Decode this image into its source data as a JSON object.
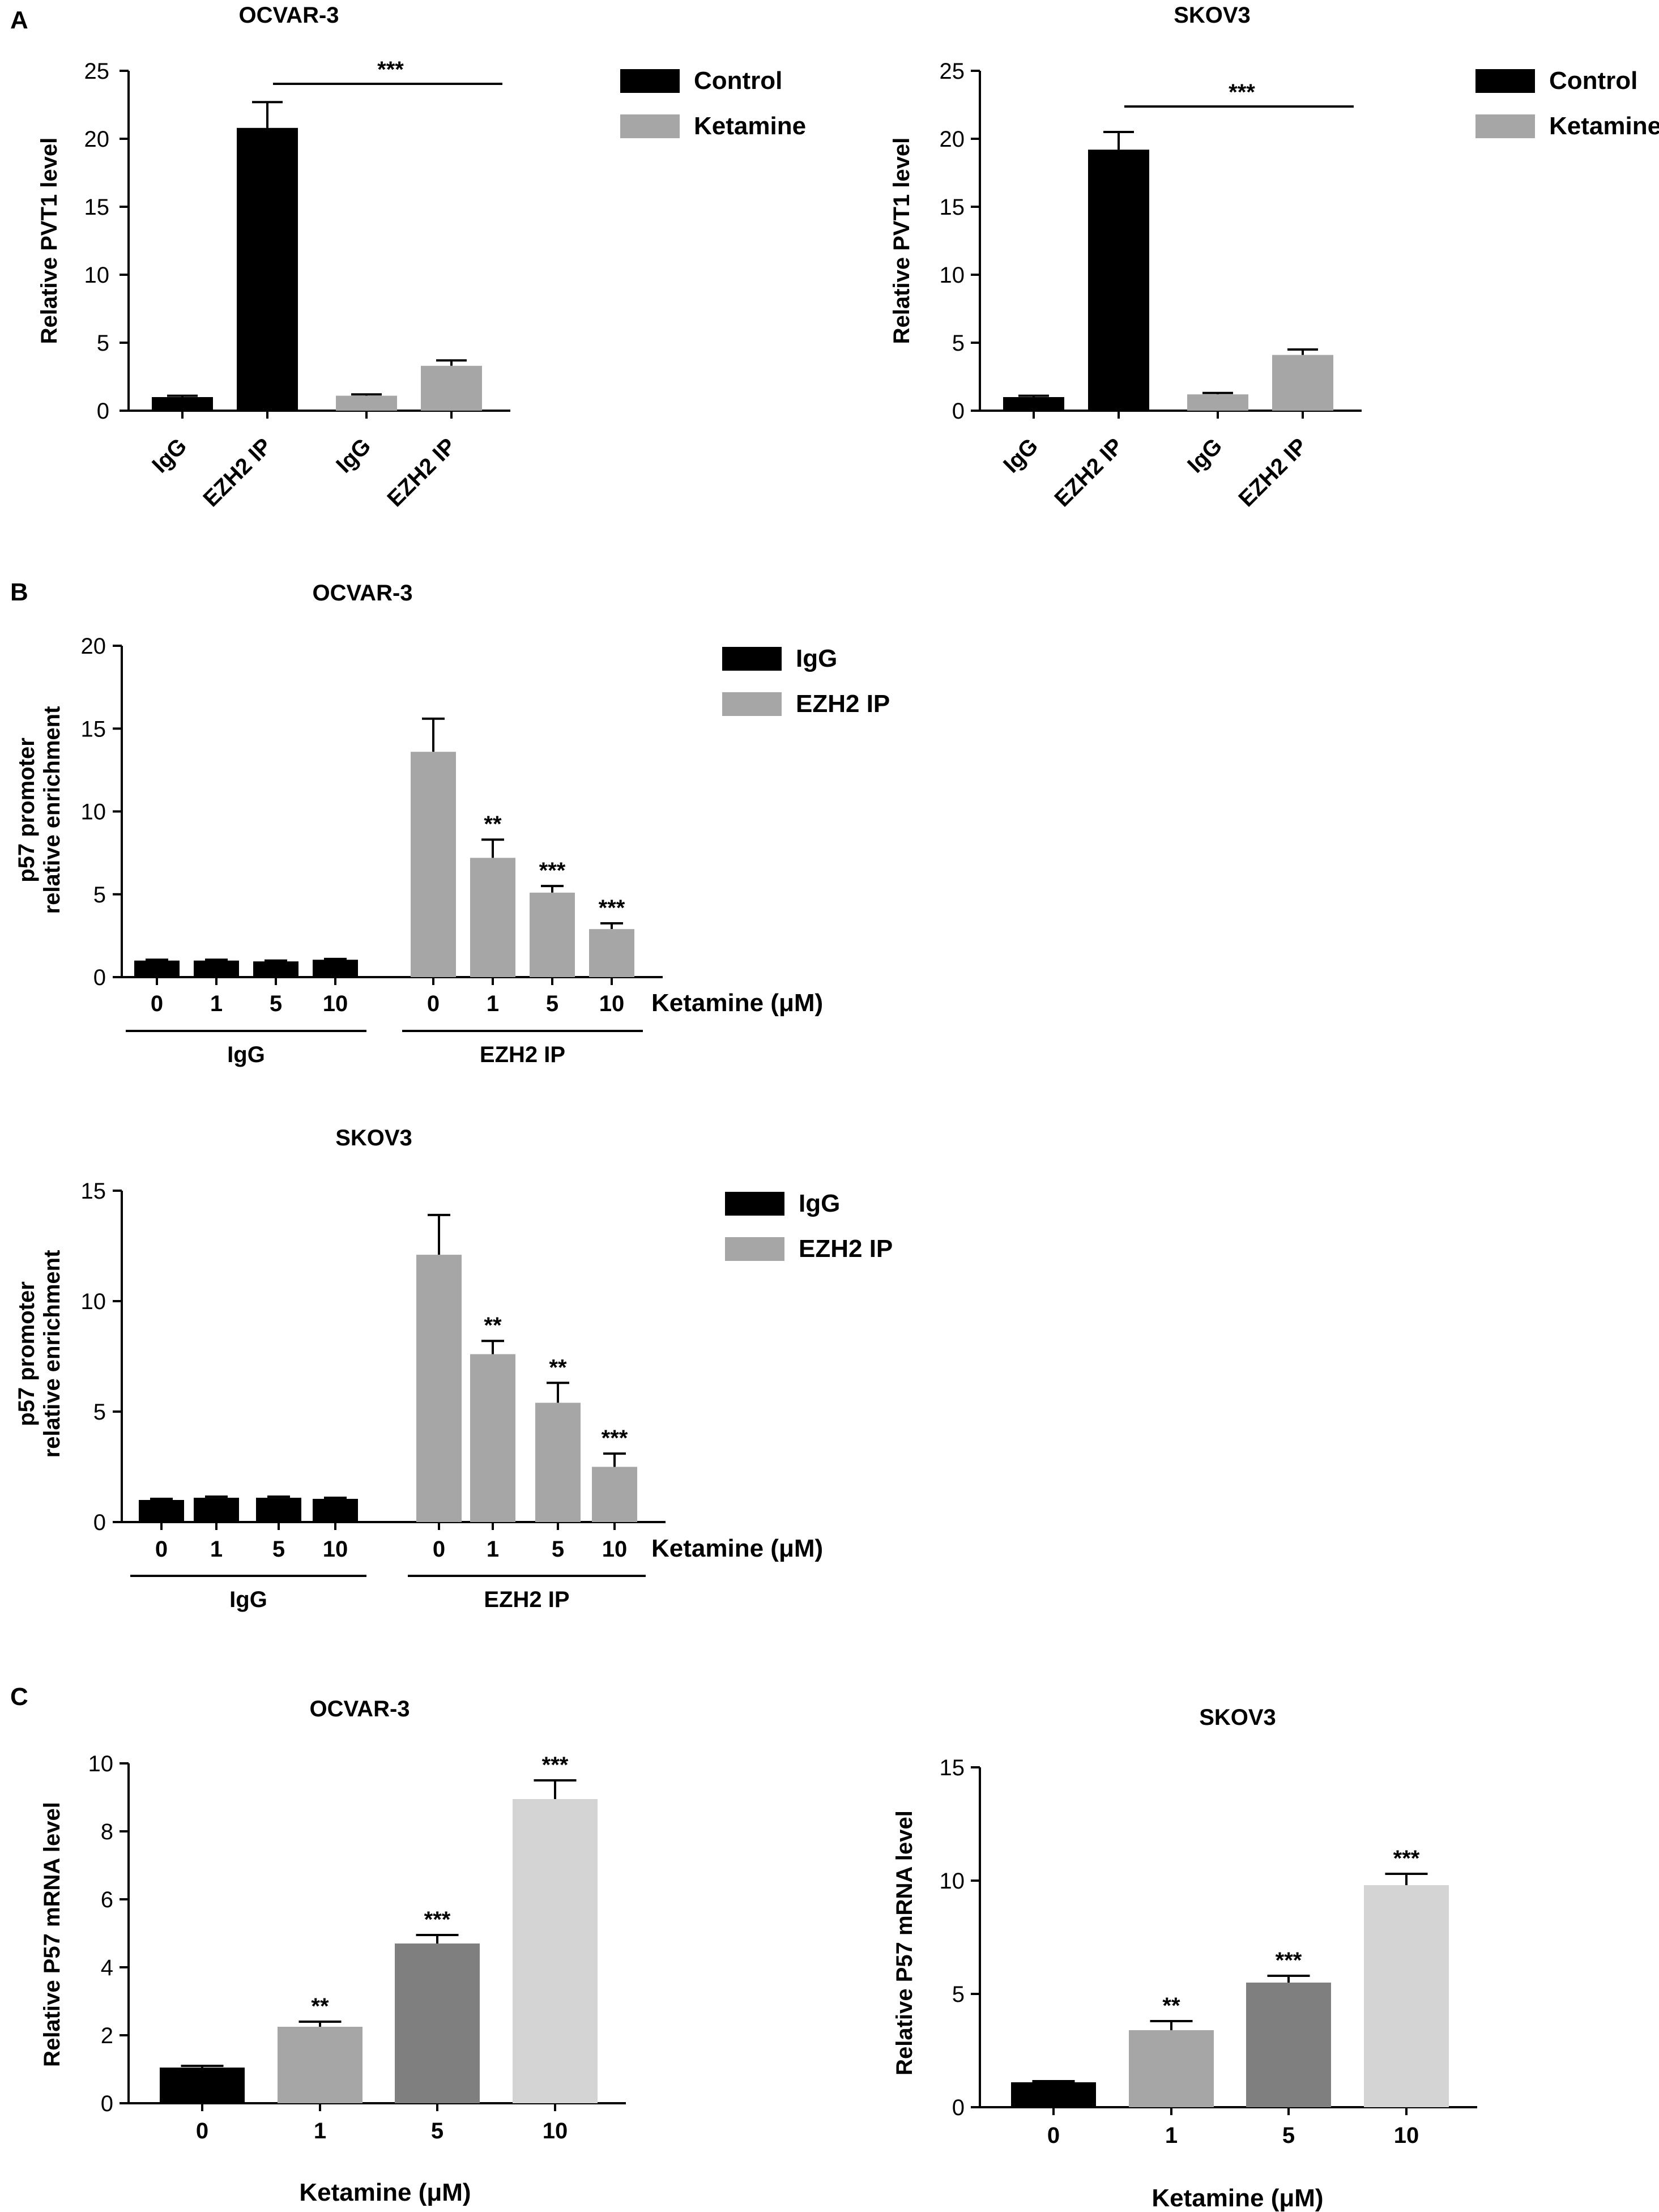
{
  "panel_letters": [
    "A",
    "B",
    "C"
  ],
  "colors": {
    "black": "#000000",
    "gray": "#a6a6a7",
    "dark_gray": "#7f7f7f",
    "light_gray": "#d4d4d4"
  },
  "chart_data": [
    {
      "id": "A1",
      "type": "bar",
      "title": "OCVAR-3",
      "ylabel": "Relative PVT1 level",
      "xlabel": "",
      "ylim": [
        0,
        25
      ],
      "yticks": [
        0,
        5,
        10,
        15,
        20,
        25
      ],
      "categories": [
        "IgG",
        "EZH2 IP",
        "IgG",
        "EZH2 IP"
      ],
      "values": [
        1.0,
        20.8,
        1.1,
        3.3
      ],
      "errors": [
        0.1,
        1.9,
        0.1,
        0.4
      ],
      "bar_series": [
        0,
        0,
        1,
        1
      ],
      "legend": [
        {
          "name": "Control",
          "color": "#000000"
        },
        {
          "name": "Ketamine",
          "color": "#a6a6a7"
        }
      ],
      "legend_position": "top-right",
      "bracket": {
        "from": 1,
        "to": 3,
        "label": "***"
      }
    },
    {
      "id": "A2",
      "type": "bar",
      "title": "SKOV3",
      "ylabel": "Relative PVT1 level",
      "xlabel": "",
      "ylim": [
        0,
        25
      ],
      "yticks": [
        0,
        5,
        10,
        15,
        20,
        25
      ],
      "categories": [
        "IgG",
        "EZH2 IP",
        "IgG",
        "EZH2 IP"
      ],
      "values": [
        1.0,
        19.2,
        1.2,
        4.1
      ],
      "errors": [
        0.1,
        1.3,
        0.1,
        0.4
      ],
      "bar_series": [
        0,
        0,
        1,
        1
      ],
      "legend": [
        {
          "name": "Control",
          "color": "#000000"
        },
        {
          "name": "Ketamine",
          "color": "#a6a6a7"
        }
      ],
      "legend_position": "top-right",
      "bracket": {
        "from": 1,
        "to": 3,
        "label": "***"
      }
    },
    {
      "id": "B1",
      "type": "bar",
      "title": "OCVAR-3",
      "ylabel_lines": [
        "p57 promoter",
        "relative enrichment"
      ],
      "xlabel": "Ketamine (μM)",
      "ylim": [
        0,
        20
      ],
      "yticks": [
        0,
        5,
        10,
        15,
        20
      ],
      "categories": [
        "0",
        "1",
        "5",
        "10",
        "0",
        "1",
        "5",
        "10"
      ],
      "groups": [
        "IgG",
        "EZH2 IP"
      ],
      "values": [
        1.0,
        1.0,
        0.95,
        1.05,
        13.6,
        7.2,
        5.1,
        2.9
      ],
      "errors": [
        0.05,
        0.05,
        0.05,
        0.05,
        2.0,
        1.1,
        0.4,
        0.35
      ],
      "significance": [
        "",
        "",
        "",
        "",
        "",
        "**",
        "***",
        "***"
      ],
      "bar_series": [
        0,
        0,
        0,
        0,
        1,
        1,
        1,
        1
      ],
      "legend": [
        {
          "name": "IgG",
          "color": "#000000"
        },
        {
          "name": "EZH2 IP",
          "color": "#a6a6a7"
        }
      ],
      "legend_position": "top-right"
    },
    {
      "id": "B2",
      "type": "bar",
      "title": "SKOV3",
      "ylabel_lines": [
        "p57 promoter",
        "relative enrichment"
      ],
      "xlabel": "Ketamine (μM)",
      "ylim": [
        0,
        15
      ],
      "yticks": [
        0,
        5,
        10,
        15
      ],
      "categories": [
        "0",
        "1",
        "5",
        "10",
        "0",
        "1",
        "5",
        "10"
      ],
      "groups": [
        "IgG",
        "EZH2 IP"
      ],
      "values": [
        1.0,
        1.1,
        1.1,
        1.05,
        12.1,
        7.6,
        5.4,
        2.5
      ],
      "errors": [
        0.05,
        0.05,
        0.05,
        0.05,
        1.8,
        0.6,
        0.9,
        0.6
      ],
      "significance": [
        "",
        "",
        "",
        "",
        "",
        "**",
        "**",
        "***"
      ],
      "bar_series": [
        0,
        0,
        0,
        0,
        1,
        1,
        1,
        1
      ],
      "legend": [
        {
          "name": "IgG",
          "color": "#000000"
        },
        {
          "name": "EZH2 IP",
          "color": "#a6a6a7"
        }
      ],
      "legend_position": "top-right"
    },
    {
      "id": "C1",
      "type": "bar",
      "title": "OCVAR-3",
      "ylabel": "Relative P57 mRNA level",
      "xlabel": "Ketamine (μM)",
      "ylim": [
        0,
        10
      ],
      "yticks": [
        0,
        2,
        4,
        6,
        8,
        10
      ],
      "categories": [
        "0",
        "1",
        "5",
        "10"
      ],
      "values": [
        1.05,
        2.25,
        4.7,
        8.95
      ],
      "errors": [
        0.05,
        0.15,
        0.25,
        0.55
      ],
      "significance": [
        "",
        "**",
        "***",
        "***"
      ],
      "bar_colors": [
        "#000000",
        "#a6a6a7",
        "#7f7f7f",
        "#d4d4d4"
      ]
    },
    {
      "id": "C2",
      "type": "bar",
      "title": "SKOV3",
      "ylabel": "Relative P57 mRNA level",
      "xlabel": "Ketamine (μM)",
      "ylim": [
        0,
        15
      ],
      "yticks": [
        0,
        5,
        10,
        15
      ],
      "categories": [
        "0",
        "1",
        "5",
        "10"
      ],
      "values": [
        1.1,
        3.4,
        5.5,
        9.8
      ],
      "errors": [
        0.05,
        0.4,
        0.3,
        0.5
      ],
      "significance": [
        "",
        "**",
        "***",
        "***"
      ],
      "bar_colors": [
        "#000000",
        "#a6a6a7",
        "#7f7f7f",
        "#d4d4d4"
      ]
    }
  ]
}
